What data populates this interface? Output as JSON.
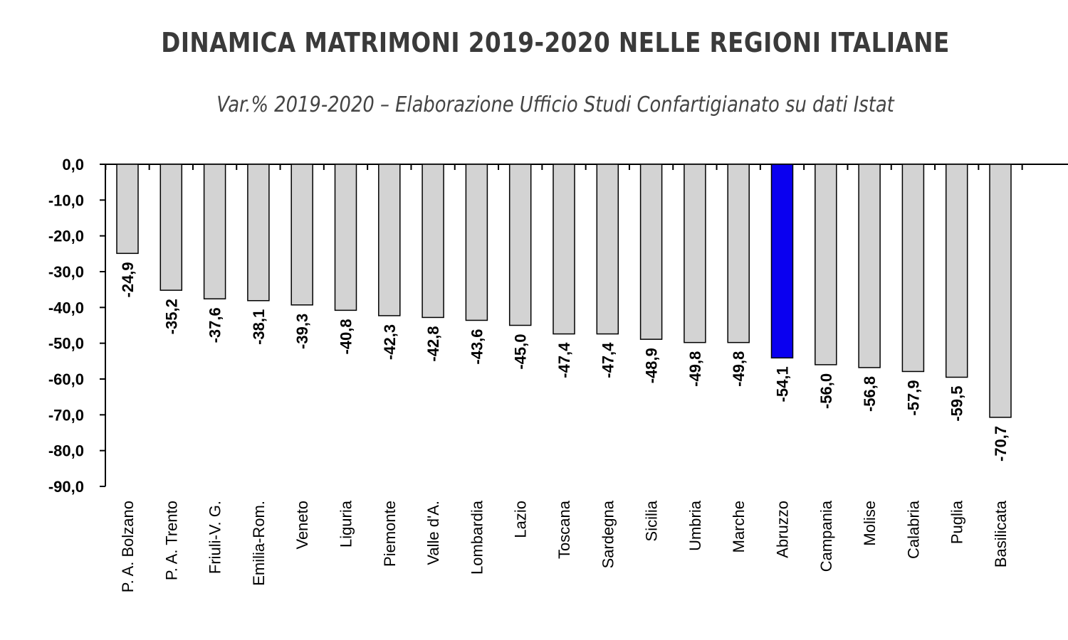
{
  "chart_data": {
    "type": "bar",
    "title": "DINAMICA MATRIMONI 2019-2020 NELLE REGIONI ITALIANE",
    "subtitle": "Var.% 2019-2020 – Elaborazione Ufficio Studi Confartigianato su dati Istat",
    "xlabel": "",
    "ylabel": "",
    "ylim": [
      -90,
      0
    ],
    "y_ticks": [
      "0,0",
      "-10,0",
      "-20,0",
      "-30,0",
      "-40,0",
      "-50,0",
      "-60,0",
      "-70,0",
      "-80,0",
      "-90,0"
    ],
    "categories": [
      "P. A. Bolzano",
      "P. A. Trento",
      "Friuli-V. G.",
      "Emilia-Rom.",
      "Veneto",
      "Liguria",
      "Piemonte",
      "Valle d'A.",
      "Lombardia",
      "Lazio",
      "Toscana",
      "Sardegna",
      "Sicilia",
      "Umbria",
      "Marche",
      "Abruzzo",
      "Campania",
      "Molise",
      "Calabria",
      "Puglia",
      "Basilicata"
    ],
    "values": [
      -24.9,
      -35.2,
      -37.6,
      -38.1,
      -39.3,
      -40.8,
      -42.3,
      -42.8,
      -43.6,
      -45.0,
      -47.4,
      -47.4,
      -48.9,
      -49.8,
      -49.8,
      -54.1,
      -56.0,
      -56.8,
      -57.9,
      -59.5,
      -70.7
    ],
    "value_labels": [
      "-24,9",
      "-35,2",
      "-37,6",
      "-38,1",
      "-39,3",
      "-40,8",
      "-42,3",
      "-42,8",
      "-43,6",
      "-45,0",
      "-47,4",
      "-47,4",
      "-48,9",
      "-49,8",
      "-49,8",
      "-54,1",
      "-56,0",
      "-56,8",
      "-57,9",
      "-59,5",
      "-70,7"
    ],
    "highlight": "Abruzzo",
    "colors": {
      "bar": "#d3d3d3",
      "highlight": "#0a00f0",
      "stroke": "#000000"
    },
    "grid": false,
    "legend": "none"
  }
}
